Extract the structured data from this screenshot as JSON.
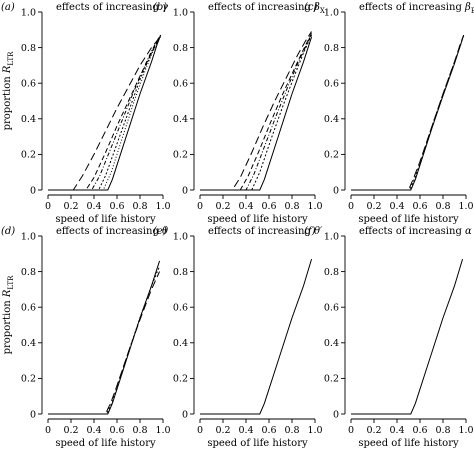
{
  "figure": {
    "ylabel_prefix": "proportion ",
    "ylabel_symbol": "R",
    "ylabel_subscript": "LTR",
    "xlabel": "speed of life history"
  },
  "chart_data": [
    {
      "panel": "(a)",
      "title_text": "effects of increasing ",
      "title_symbol": "γ",
      "title_subscript": "",
      "type": "line",
      "xlim": [
        0,
        1
      ],
      "ylim": [
        0,
        1
      ],
      "xticks": [
        "0",
        "0.2",
        "0.4",
        "0.6",
        "0.8",
        "1.0"
      ],
      "yticks": [
        "0",
        "0.2",
        "0.4",
        "0.6",
        "0.8",
        "1.0"
      ],
      "grid": false,
      "series": [
        {
          "dash": "8,4",
          "x": [
            0,
            0.22,
            0.3,
            0.4,
            0.5,
            0.6,
            0.7,
            0.8,
            0.9,
            0.95,
            0.98
          ],
          "y": [
            0,
            0,
            0.08,
            0.2,
            0.33,
            0.46,
            0.58,
            0.7,
            0.8,
            0.84,
            0.86
          ]
        },
        {
          "dash": "5,3",
          "x": [
            0,
            0.33,
            0.4,
            0.5,
            0.6,
            0.7,
            0.8,
            0.9,
            0.95,
            0.98
          ],
          "y": [
            0,
            0,
            0.07,
            0.21,
            0.36,
            0.5,
            0.64,
            0.77,
            0.83,
            0.86
          ]
        },
        {
          "dash": "4,2,1,2",
          "x": [
            0,
            0.38,
            0.45,
            0.55,
            0.65,
            0.75,
            0.85,
            0.9,
            0.95,
            0.98
          ],
          "y": [
            0,
            0,
            0.08,
            0.24,
            0.4,
            0.56,
            0.71,
            0.78,
            0.84,
            0.87
          ]
        },
        {
          "dash": "2,2",
          "x": [
            0,
            0.44,
            0.5,
            0.6,
            0.7,
            0.8,
            0.9,
            0.95,
            0.98
          ],
          "y": [
            0,
            0,
            0.08,
            0.26,
            0.44,
            0.62,
            0.77,
            0.84,
            0.87
          ]
        },
        {
          "dash": "1,2",
          "x": [
            0,
            0.48,
            0.55,
            0.65,
            0.75,
            0.85,
            0.9,
            0.95,
            0.98
          ],
          "y": [
            0,
            0,
            0.1,
            0.3,
            0.5,
            0.68,
            0.76,
            0.83,
            0.87
          ]
        },
        {
          "dash": "",
          "x": [
            0,
            0.52,
            0.56,
            0.6,
            0.7,
            0.8,
            0.9,
            0.95,
            0.98
          ],
          "y": [
            0,
            0,
            0.06,
            0.14,
            0.34,
            0.54,
            0.72,
            0.82,
            0.87
          ]
        }
      ]
    },
    {
      "panel": "(b)",
      "title_text": "effects of increasing ",
      "title_symbol": "β",
      "title_subscript": "X",
      "type": "line",
      "xlim": [
        0,
        1
      ],
      "ylim": [
        0,
        1
      ],
      "xticks": [
        "0",
        "0.2",
        "0.4",
        "0.6",
        "0.8",
        "1.0"
      ],
      "yticks": [
        "0",
        "0.2",
        "0.4",
        "0.6",
        "0.8",
        "1.0"
      ],
      "grid": false,
      "series": [
        {
          "dash": "8,4",
          "x": [
            0,
            0.28,
            0.35,
            0.45,
            0.55,
            0.65,
            0.75,
            0.85,
            0.92,
            0.97
          ],
          "y": [
            0,
            0,
            0.07,
            0.21,
            0.36,
            0.5,
            0.63,
            0.76,
            0.84,
            0.89
          ]
        },
        {
          "dash": "5,3",
          "x": [
            0,
            0.35,
            0.42,
            0.52,
            0.62,
            0.72,
            0.82,
            0.9,
            0.97
          ],
          "y": [
            0,
            0,
            0.08,
            0.23,
            0.39,
            0.54,
            0.68,
            0.79,
            0.88
          ]
        },
        {
          "dash": "4,2,1,2",
          "x": [
            0,
            0.4,
            0.47,
            0.57,
            0.67,
            0.77,
            0.87,
            0.93,
            0.97
          ],
          "y": [
            0,
            0,
            0.09,
            0.26,
            0.43,
            0.59,
            0.74,
            0.82,
            0.88
          ]
        },
        {
          "dash": "2,2",
          "x": [
            0,
            0.45,
            0.52,
            0.62,
            0.72,
            0.82,
            0.9,
            0.97
          ],
          "y": [
            0,
            0,
            0.1,
            0.29,
            0.47,
            0.64,
            0.77,
            0.87
          ]
        },
        {
          "dash": "",
          "x": [
            0,
            0.52,
            0.56,
            0.6,
            0.7,
            0.8,
            0.9,
            0.97
          ],
          "y": [
            0,
            0,
            0.06,
            0.14,
            0.34,
            0.54,
            0.72,
            0.86
          ]
        }
      ]
    },
    {
      "panel": "(c)",
      "title_text": "effects of increasing ",
      "title_symbol": "β",
      "title_subscript": "E",
      "type": "line",
      "xlim": [
        0,
        1
      ],
      "ylim": [
        0,
        1
      ],
      "xticks": [
        "0",
        "0.2",
        "0.4",
        "0.6",
        "0.8",
        "1.0"
      ],
      "yticks": [
        "0",
        "0.2",
        "0.4",
        "0.6",
        "0.8",
        "1.0"
      ],
      "grid": false,
      "series": [
        {
          "dash": "8,4",
          "x": [
            0,
            0.5,
            0.54,
            0.6,
            0.7,
            0.8,
            0.9,
            0.95,
            0.98
          ],
          "y": [
            0,
            0,
            0.06,
            0.16,
            0.35,
            0.54,
            0.72,
            0.82,
            0.87
          ]
        },
        {
          "dash": "2,2",
          "x": [
            0,
            0.51,
            0.55,
            0.6,
            0.7,
            0.8,
            0.9,
            0.95,
            0.98
          ],
          "y": [
            0,
            0,
            0.06,
            0.15,
            0.35,
            0.54,
            0.72,
            0.81,
            0.87
          ]
        },
        {
          "dash": "",
          "x": [
            0,
            0.52,
            0.56,
            0.6,
            0.7,
            0.8,
            0.9,
            0.95,
            0.98
          ],
          "y": [
            0,
            0,
            0.06,
            0.14,
            0.34,
            0.53,
            0.71,
            0.81,
            0.87
          ]
        }
      ]
    },
    {
      "panel": "(d)",
      "title_text": "effects of increasing ",
      "title_symbol": "θ",
      "title_subscript": "",
      "type": "line",
      "xlim": [
        0,
        1
      ],
      "ylim": [
        0,
        1
      ],
      "xticks": [
        "0",
        "0.2",
        "0.4",
        "0.6",
        "0.8",
        "1.0"
      ],
      "yticks": [
        "0",
        "0.2",
        "0.4",
        "0.6",
        "0.8",
        "1.0"
      ],
      "grid": false,
      "series": [
        {
          "dash": "8,4",
          "x": [
            0,
            0.5,
            0.55,
            0.6,
            0.7,
            0.8,
            0.9,
            0.97
          ],
          "y": [
            0,
            0,
            0.07,
            0.16,
            0.35,
            0.53,
            0.7,
            0.8
          ]
        },
        {
          "dash": "2,2",
          "x": [
            0,
            0.51,
            0.56,
            0.6,
            0.7,
            0.8,
            0.9,
            0.97
          ],
          "y": [
            0,
            0,
            0.07,
            0.15,
            0.35,
            0.54,
            0.72,
            0.83
          ]
        },
        {
          "dash": "",
          "x": [
            0,
            0.52,
            0.56,
            0.6,
            0.7,
            0.8,
            0.9,
            0.97
          ],
          "y": [
            0,
            0,
            0.06,
            0.14,
            0.34,
            0.54,
            0.72,
            0.86
          ]
        }
      ]
    },
    {
      "panel": "(e)",
      "title_text": "effects of increasing ",
      "title_symbol": "θ′",
      "title_subscript": "",
      "type": "line",
      "xlim": [
        0,
        1
      ],
      "ylim": [
        0,
        1
      ],
      "xticks": [
        "0",
        "0.2",
        "0.4",
        "0.6",
        "0.8",
        "1.0"
      ],
      "yticks": [
        "0",
        "0.2",
        "0.4",
        "0.6",
        "0.8",
        "1.0"
      ],
      "grid": false,
      "series": [
        {
          "dash": "",
          "x": [
            0,
            0.52,
            0.56,
            0.6,
            0.7,
            0.8,
            0.9,
            0.97
          ],
          "y": [
            0,
            0,
            0.06,
            0.14,
            0.34,
            0.54,
            0.72,
            0.87
          ]
        }
      ]
    },
    {
      "panel": "(f)",
      "title_text": "effects of increasing ",
      "title_symbol": "α",
      "title_subscript": "",
      "type": "line",
      "xlim": [
        0,
        1
      ],
      "ylim": [
        0,
        1
      ],
      "xticks": [
        "0",
        "0.2",
        "0.4",
        "0.6",
        "0.8",
        "1.0"
      ],
      "yticks": [
        "0",
        "0.2",
        "0.4",
        "0.6",
        "0.8",
        "1.0"
      ],
      "grid": false,
      "series": [
        {
          "dash": "",
          "x": [
            0,
            0.52,
            0.56,
            0.6,
            0.7,
            0.8,
            0.9,
            0.97
          ],
          "y": [
            0,
            0,
            0.06,
            0.14,
            0.34,
            0.54,
            0.72,
            0.87
          ]
        }
      ]
    }
  ]
}
